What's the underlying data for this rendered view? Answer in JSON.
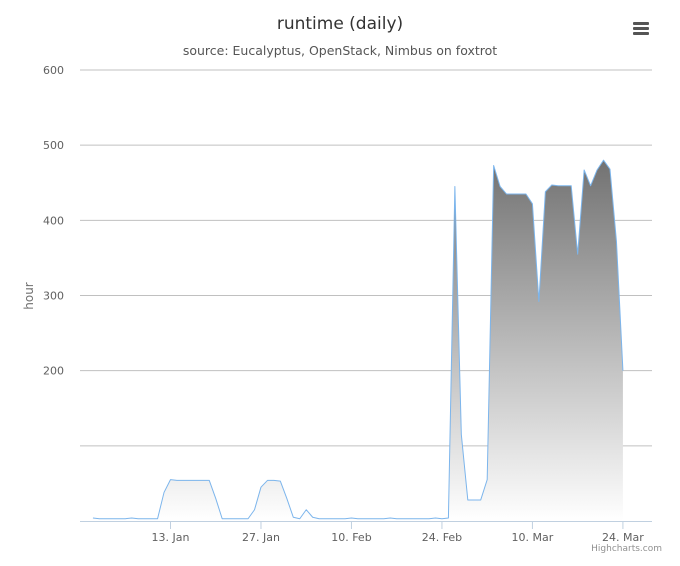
{
  "chart_data": {
    "type": "area",
    "title": "runtime (daily)",
    "subtitle": "source: Eucalyptus, OpenStack, Nimbus on foxtrot",
    "ylabel": "hour",
    "xlabel": "",
    "ylim": [
      0,
      600
    ],
    "y_ticks": [
      200,
      300,
      400,
      500,
      600
    ],
    "x_ticks": [
      {
        "label": "13. Jan",
        "date": "2014-01-13"
      },
      {
        "label": "27. Jan",
        "date": "2014-01-27"
      },
      {
        "label": "10. Feb",
        "date": "2014-02-10"
      },
      {
        "label": "24. Feb",
        "date": "2014-02-24"
      },
      {
        "label": "10. Mar",
        "date": "2014-03-10"
      },
      {
        "label": "24. Mar",
        "date": "2014-03-24"
      }
    ],
    "grid": true,
    "legend": "none",
    "series": [
      {
        "color": "#7cb5ec",
        "points": [
          [
            "2014-01-01",
            4
          ],
          [
            "2014-01-02",
            3
          ],
          [
            "2014-01-03",
            3
          ],
          [
            "2014-01-04",
            3
          ],
          [
            "2014-01-05",
            3
          ],
          [
            "2014-01-06",
            3
          ],
          [
            "2014-01-07",
            4
          ],
          [
            "2014-01-08",
            3
          ],
          [
            "2014-01-09",
            3
          ],
          [
            "2014-01-10",
            3
          ],
          [
            "2014-01-11",
            3
          ],
          [
            "2014-01-12",
            38
          ],
          [
            "2014-01-13",
            55
          ],
          [
            "2014-01-14",
            54
          ],
          [
            "2014-01-15",
            54
          ],
          [
            "2014-01-16",
            54
          ],
          [
            "2014-01-17",
            54
          ],
          [
            "2014-01-18",
            54
          ],
          [
            "2014-01-19",
            54
          ],
          [
            "2014-01-20",
            30
          ],
          [
            "2014-01-21",
            3
          ],
          [
            "2014-01-22",
            3
          ],
          [
            "2014-01-23",
            3
          ],
          [
            "2014-01-24",
            3
          ],
          [
            "2014-01-25",
            3
          ],
          [
            "2014-01-26",
            15
          ],
          [
            "2014-01-27",
            45
          ],
          [
            "2014-01-28",
            54
          ],
          [
            "2014-01-29",
            54
          ],
          [
            "2014-01-30",
            53
          ],
          [
            "2014-01-31",
            30
          ],
          [
            "2014-02-01",
            5
          ],
          [
            "2014-02-02",
            3
          ],
          [
            "2014-02-03",
            15
          ],
          [
            "2014-02-04",
            5
          ],
          [
            "2014-02-05",
            3
          ],
          [
            "2014-02-06",
            3
          ],
          [
            "2014-02-07",
            3
          ],
          [
            "2014-02-08",
            3
          ],
          [
            "2014-02-09",
            3
          ],
          [
            "2014-02-10",
            4
          ],
          [
            "2014-02-11",
            3
          ],
          [
            "2014-02-12",
            3
          ],
          [
            "2014-02-13",
            3
          ],
          [
            "2014-02-14",
            3
          ],
          [
            "2014-02-15",
            3
          ],
          [
            "2014-02-16",
            4
          ],
          [
            "2014-02-17",
            3
          ],
          [
            "2014-02-18",
            3
          ],
          [
            "2014-02-19",
            3
          ],
          [
            "2014-02-20",
            3
          ],
          [
            "2014-02-21",
            3
          ],
          [
            "2014-02-22",
            3
          ],
          [
            "2014-02-23",
            4
          ],
          [
            "2014-02-24",
            3
          ],
          [
            "2014-02-25",
            4
          ],
          [
            "2014-02-26",
            445
          ],
          [
            "2014-02-27",
            115
          ],
          [
            "2014-02-28",
            28
          ],
          [
            "2014-03-01",
            28
          ],
          [
            "2014-03-02",
            28
          ],
          [
            "2014-03-03",
            55
          ],
          [
            "2014-03-04",
            473
          ],
          [
            "2014-03-05",
            445
          ],
          [
            "2014-03-06",
            435
          ],
          [
            "2014-03-07",
            435
          ],
          [
            "2014-03-08",
            435
          ],
          [
            "2014-03-09",
            435
          ],
          [
            "2014-03-10",
            422
          ],
          [
            "2014-03-11",
            292
          ],
          [
            "2014-03-12",
            438
          ],
          [
            "2014-03-13",
            447
          ],
          [
            "2014-03-14",
            446
          ],
          [
            "2014-03-15",
            446
          ],
          [
            "2014-03-16",
            446
          ],
          [
            "2014-03-17",
            355
          ],
          [
            "2014-03-18",
            467
          ],
          [
            "2014-03-19",
            446
          ],
          [
            "2014-03-20",
            467
          ],
          [
            "2014-03-21",
            480
          ],
          [
            "2014-03-22",
            468
          ],
          [
            "2014-03-23",
            372
          ],
          [
            "2014-03-24",
            200
          ]
        ]
      }
    ]
  },
  "credits": "Highcharts.com"
}
